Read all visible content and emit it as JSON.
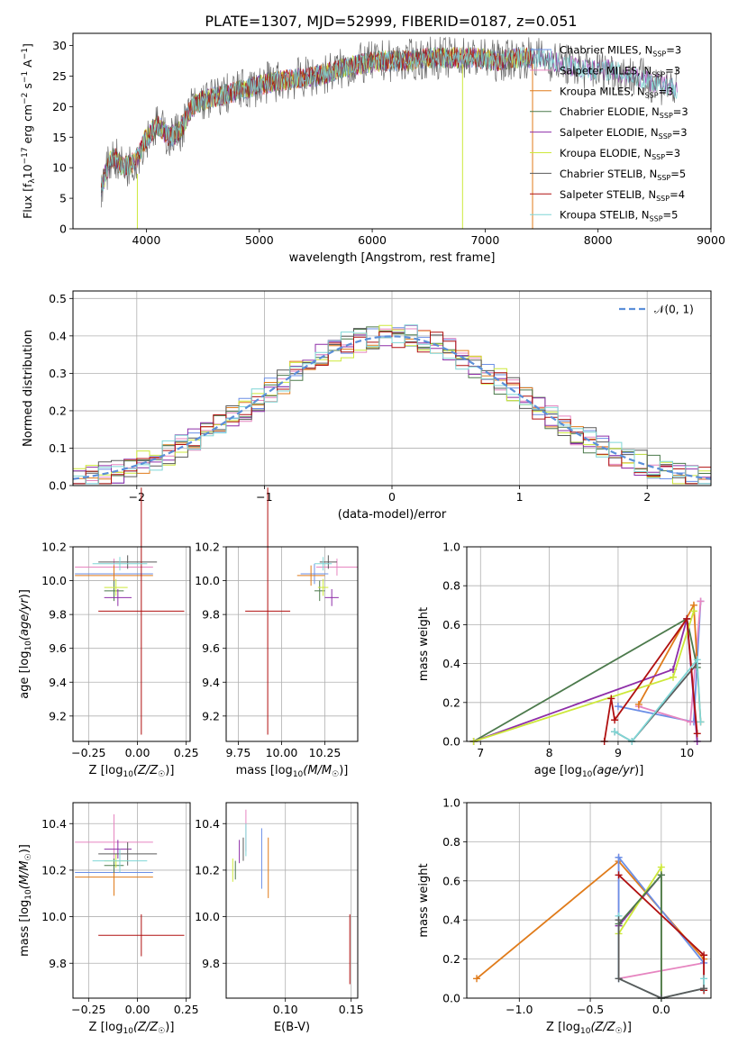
{
  "figure": {
    "title": "PLATE=1307, MJD=52999, FIBERID=0187, z=0.051"
  },
  "colors": {
    "Chabrier MILES": "#6b8fe6",
    "Salpeter MILES": "#e685c0",
    "Kroupa MILES": "#e07b1a",
    "Chabrier ELODIE": "#4c7a4c",
    "Salpeter ELODIE": "#8e2ea8",
    "Kroupa ELODIE": "#cde83a",
    "Chabrier STELIB": "#5a5a5a",
    "Salpeter STELIB": "#b01010",
    "Kroupa STELIB": "#7fd6d6"
  },
  "chart_data": [
    {
      "id": "spectrum",
      "type": "line",
      "xlabel": "wavelength [Angstrom, rest frame]",
      "ylabel": "Flux [f_λ10^-17 erg cm^-2 s^-1 A^-1]",
      "xlim": [
        3350,
        9000
      ],
      "ylim": [
        0,
        32
      ],
      "xticks": [
        "4000",
        "5000",
        "6000",
        "7000",
        "8000",
        "9000"
      ],
      "yticks": [
        "0",
        "5",
        "10",
        "15",
        "20",
        "25",
        "30"
      ],
      "grid": false,
      "legend_position": "top-right",
      "legend": [
        {
          "label": "Chabrier MILES, N",
          "sub": "SSP",
          "tail": "=3"
        },
        {
          "label": "Salpeter MILES, N",
          "sub": "SSP",
          "tail": "=3"
        },
        {
          "label": "Kroupa MILES, N",
          "sub": "SSP",
          "tail": "=3"
        },
        {
          "label": "Chabrier ELODIE, N",
          "sub": "SSP",
          "tail": "=3"
        },
        {
          "label": "Salpeter ELODIE, N",
          "sub": "SSP",
          "tail": "=3"
        },
        {
          "label": "Kroupa ELODIE, N",
          "sub": "SSP",
          "tail": "=3"
        },
        {
          "label": "Chabrier STELIB, N",
          "sub": "SSP",
          "tail": "=5"
        },
        {
          "label": "Salpeter STELIB, N",
          "sub": "SSP",
          "tail": "=4"
        },
        {
          "label": "Kroupa STELIB, N",
          "sub": "SSP",
          "tail": "=5"
        }
      ],
      "series": [
        {
          "name": "Chabrier MILES",
          "x": [
            3600,
            3700,
            3800,
            3900,
            4000,
            4100,
            4200,
            4300,
            4400,
            4500,
            4700,
            4900,
            5100,
            5300,
            5500,
            5700,
            5900,
            6100,
            6300,
            6500,
            6700,
            6900,
            7100,
            7300,
            7400
          ],
          "y": [
            7,
            12,
            10,
            11,
            15,
            17,
            15,
            16,
            20,
            21,
            22,
            23,
            24,
            24.5,
            25,
            26,
            27,
            27.5,
            27.5,
            28,
            28,
            28,
            27.5,
            28,
            28
          ]
        },
        {
          "name": "Kroupa STELIB",
          "x": [
            3600,
            3700,
            3800,
            3900,
            4000,
            4100,
            4200,
            4300,
            4400,
            4500,
            4700,
            4900,
            5100,
            5300,
            5500,
            5700,
            5900,
            6100,
            6300,
            6500,
            6700,
            6900,
            7100,
            7300,
            7500,
            7700,
            7900,
            8100,
            8300,
            8500,
            8700
          ],
          "y": [
            7,
            12,
            10,
            11,
            15,
            17,
            15,
            16,
            20,
            21,
            22,
            23,
            24,
            24.5,
            25,
            26,
            27,
            27.5,
            27.5,
            28,
            28,
            28,
            27.5,
            28,
            28,
            27,
            26,
            26,
            25,
            24,
            23
          ]
        }
      ]
    },
    {
      "id": "residuals",
      "type": "line",
      "xlabel": "(data-model)/error",
      "ylabel": "Normed distribution",
      "xlim": [
        -2.5,
        2.5
      ],
      "ylim": [
        0,
        0.52
      ],
      "xticks": [
        "−2",
        "−1",
        "0",
        "1",
        "2"
      ],
      "yticks": [
        "0.0",
        "0.1",
        "0.2",
        "0.3",
        "0.4",
        "0.5"
      ],
      "grid": true,
      "legend_position": "top-right",
      "legend": [
        {
          "label": "𝒩(0, 1)"
        }
      ],
      "series": [
        {
          "name": "Chabrier MILES",
          "x": [
            -2.5,
            -2.2,
            -2.0,
            -1.8,
            -1.6,
            -1.4,
            -1.2,
            -1.0,
            -0.8,
            -0.6,
            -0.4,
            -0.2,
            0.0,
            0.2,
            0.4,
            0.6,
            0.8,
            1.0,
            1.2,
            1.4,
            1.6,
            1.8,
            2.0,
            2.2,
            2.4
          ],
          "y": [
            0.02,
            0.03,
            0.05,
            0.08,
            0.13,
            0.17,
            0.22,
            0.27,
            0.31,
            0.37,
            0.42,
            0.38,
            0.41,
            0.39,
            0.36,
            0.33,
            0.3,
            0.25,
            0.2,
            0.15,
            0.11,
            0.08,
            0.06,
            0.04,
            0.03
          ]
        },
        {
          "name": "Salpeter STELIB",
          "x": [
            -2.5,
            -2.2,
            -2.0,
            -1.8,
            -1.6,
            -1.4,
            -1.2,
            -1.0,
            -0.8,
            -0.6,
            -0.4,
            -0.2,
            0.0,
            0.2,
            0.4,
            0.6,
            0.8,
            1.0,
            1.2,
            1.4,
            1.6,
            1.8,
            2.0,
            2.2,
            2.4
          ],
          "y": [
            0.03,
            0.02,
            0.05,
            0.09,
            0.12,
            0.17,
            0.21,
            0.26,
            0.3,
            0.35,
            0.46,
            0.36,
            0.4,
            0.4,
            0.34,
            0.34,
            0.29,
            0.24,
            0.21,
            0.17,
            0.12,
            0.09,
            0.07,
            0.05,
            0.03
          ]
        }
      ],
      "gaussian": {
        "name": "𝒩(0, 1)",
        "mu": 0,
        "sigma": 1
      }
    },
    {
      "id": "age-vs-Z",
      "type": "scatter",
      "xlabel": "Z [log10(Z/Z☉)]",
      "ylabel": "age  [log10(age/yr)]",
      "xlim": [
        -0.33,
        0.27
      ],
      "ylim": [
        9.05,
        10.2
      ],
      "xticks": [
        "−0.25",
        "0.00",
        "0.25"
      ],
      "yticks": [
        "9.2",
        "9.4",
        "9.6",
        "9.8",
        "10.0",
        "10.2"
      ],
      "grid": true,
      "points": [
        {
          "name": "Chabrier MILES",
          "x": -0.12,
          "y": 10.04,
          "xerr": 0.2,
          "yerr": 0.06
        },
        {
          "name": "Salpeter MILES",
          "x": -0.12,
          "y": 10.08,
          "xerr": 0.2,
          "yerr": 0.05
        },
        {
          "name": "Kroupa MILES",
          "x": -0.12,
          "y": 10.03,
          "xerr": 0.2,
          "yerr": 0.06
        },
        {
          "name": "Chabrier ELODIE",
          "x": -0.12,
          "y": 9.94,
          "xerr": 0.05,
          "yerr": 0.06
        },
        {
          "name": "Salpeter ELODIE",
          "x": -0.1,
          "y": 9.9,
          "xerr": 0.07,
          "yerr": 0.05
        },
        {
          "name": "Kroupa ELODIE",
          "x": -0.11,
          "y": 9.96,
          "xerr": 0.06,
          "yerr": 0.05
        },
        {
          "name": "Chabrier STELIB",
          "x": -0.05,
          "y": 10.11,
          "xerr": 0.15,
          "yerr": 0.04
        },
        {
          "name": "Salpeter STELIB",
          "x": 0.02,
          "y": 9.82,
          "xerr": 0.22,
          "yerr": 0.73
        },
        {
          "name": "Kroupa STELIB",
          "x": -0.09,
          "y": 10.1,
          "xerr": 0.14,
          "yerr": 0.04
        }
      ]
    },
    {
      "id": "age-vs-mass",
      "type": "scatter",
      "xlabel": "mass [log10(M/M☉)]",
      "ylabel": "",
      "xlim": [
        9.68,
        10.44
      ],
      "ylim": [
        9.05,
        10.2
      ],
      "xticks": [
        "9.75",
        "10.00",
        "10.25"
      ],
      "yticks": [
        "9.2",
        "9.4",
        "9.6",
        "9.8",
        "10.0",
        "10.2"
      ],
      "grid": true,
      "points": [
        {
          "name": "Chabrier MILES",
          "x": 10.19,
          "y": 10.04,
          "xerr": 0.08,
          "yerr": 0.06
        },
        {
          "name": "Salpeter MILES",
          "x": 10.32,
          "y": 10.08,
          "xerr": 0.12,
          "yerr": 0.05
        },
        {
          "name": "Kroupa MILES",
          "x": 10.17,
          "y": 10.03,
          "xerr": 0.08,
          "yerr": 0.06
        },
        {
          "name": "Chabrier ELODIE",
          "x": 10.22,
          "y": 9.94,
          "xerr": 0.03,
          "yerr": 0.06
        },
        {
          "name": "Salpeter ELODIE",
          "x": 10.29,
          "y": 9.9,
          "xerr": 0.04,
          "yerr": 0.05
        },
        {
          "name": "Kroupa ELODIE",
          "x": 10.24,
          "y": 9.96,
          "xerr": 0.03,
          "yerr": 0.05
        },
        {
          "name": "Chabrier STELIB",
          "x": 10.27,
          "y": 10.11,
          "xerr": 0.05,
          "yerr": 0.04
        },
        {
          "name": "Salpeter STELIB",
          "x": 9.92,
          "y": 9.82,
          "xerr": 0.13,
          "yerr": 0.73
        },
        {
          "name": "Kroupa STELIB",
          "x": 10.24,
          "y": 10.1,
          "xerr": 0.05,
          "yerr": 0.04
        }
      ]
    },
    {
      "id": "massweight-vs-age",
      "type": "line",
      "xlabel": "age  [log10(age/yr)]",
      "ylabel": "mass weight",
      "xlim": [
        6.8,
        10.35
      ],
      "ylim": [
        0,
        1.0
      ],
      "xticks": [
        "7",
        "8",
        "9",
        "10"
      ],
      "yticks": [
        "0.0",
        "0.2",
        "0.4",
        "0.6",
        "0.8",
        "1.0"
      ],
      "grid": true,
      "series": [
        {
          "name": "Chabrier MILES",
          "x": [
            9.0,
            10.1,
            10.2
          ],
          "y": [
            0.18,
            0.1,
            0.72
          ]
        },
        {
          "name": "Salpeter MILES",
          "x": [
            9.3,
            10.05,
            10.2
          ],
          "y": [
            0.18,
            0.1,
            0.72
          ]
        },
        {
          "name": "Kroupa MILES",
          "x": [
            9.3,
            10.1,
            10.2
          ],
          "y": [
            0.19,
            0.7,
            0.1
          ]
        },
        {
          "name": "Chabrier ELODIE",
          "x": [
            6.9,
            10.0,
            10.15
          ],
          "y": [
            0.0,
            0.63,
            0.38
          ]
        },
        {
          "name": "Salpeter ELODIE",
          "x": [
            6.9,
            9.8,
            10.0,
            10.15
          ],
          "y": [
            0.0,
            0.37,
            0.63,
            0.0
          ]
        },
        {
          "name": "Kroupa ELODIE",
          "x": [
            6.9,
            9.8,
            10.1
          ],
          "y": [
            0.0,
            0.33,
            0.67
          ]
        },
        {
          "name": "Chabrier STELIB",
          "x": [
            8.95,
            9.2,
            10.15
          ],
          "y": [
            0.05,
            0.0,
            0.4
          ]
        },
        {
          "name": "Salpeter STELIB",
          "x": [
            8.8,
            8.9,
            8.95,
            10.0,
            10.15
          ],
          "y": [
            0.0,
            0.22,
            0.11,
            0.63,
            0.04
          ]
        },
        {
          "name": "Kroupa STELIB",
          "x": [
            8.95,
            9.2,
            10.15,
            10.2
          ],
          "y": [
            0.05,
            0.0,
            0.42,
            0.1
          ]
        }
      ]
    },
    {
      "id": "mass-vs-Z",
      "type": "scatter",
      "xlabel": "Z [log10(Z/Z☉)]",
      "ylabel": "mass [log10(M/M☉)]",
      "xlim": [
        -0.33,
        0.27
      ],
      "ylim": [
        9.65,
        10.49
      ],
      "xticks": [
        "−0.25",
        "0.00",
        "0.25"
      ],
      "yticks": [
        "9.8",
        "10.0",
        "10.2",
        "10.4"
      ],
      "grid": true,
      "points": [
        {
          "name": "Chabrier MILES",
          "x": -0.12,
          "y": 10.19,
          "xerr": 0.2,
          "yerr": 0.08
        },
        {
          "name": "Salpeter MILES",
          "x": -0.12,
          "y": 10.32,
          "xerr": 0.2,
          "yerr": 0.12
        },
        {
          "name": "Kroupa MILES",
          "x": -0.12,
          "y": 10.17,
          "xerr": 0.2,
          "yerr": 0.08
        },
        {
          "name": "Chabrier ELODIE",
          "x": -0.12,
          "y": 10.22,
          "xerr": 0.05,
          "yerr": 0.03
        },
        {
          "name": "Salpeter ELODIE",
          "x": -0.1,
          "y": 10.29,
          "xerr": 0.07,
          "yerr": 0.04
        },
        {
          "name": "Kroupa ELODIE",
          "x": -0.11,
          "y": 10.24,
          "xerr": 0.06,
          "yerr": 0.03
        },
        {
          "name": "Chabrier STELIB",
          "x": -0.05,
          "y": 10.27,
          "xerr": 0.15,
          "yerr": 0.05
        },
        {
          "name": "Salpeter STELIB",
          "x": 0.02,
          "y": 9.92,
          "xerr": 0.22,
          "yerr": 0.09
        },
        {
          "name": "Kroupa STELIB",
          "x": -0.09,
          "y": 10.24,
          "xerr": 0.14,
          "yerr": 0.05
        }
      ]
    },
    {
      "id": "mass-vs-ebv",
      "type": "scatter",
      "xlabel": "E(B-V)",
      "ylabel": "",
      "xlim": [
        0.055,
        0.155
      ],
      "ylim": [
        9.65,
        10.49
      ],
      "xticks": [
        "0.10",
        "0.15"
      ],
      "yticks": [
        "9.8",
        "10.0",
        "10.2",
        "10.4"
      ],
      "grid": true,
      "points": [
        {
          "name": "Chabrier MILES",
          "x": 0.082,
          "y": 10.25,
          "xerr": 0,
          "yerr": 0.13
        },
        {
          "name": "Salpeter MILES",
          "x": 0.07,
          "y": 10.37,
          "xerr": 0,
          "yerr": 0.09
        },
        {
          "name": "Kroupa MILES",
          "x": 0.087,
          "y": 10.21,
          "xerr": 0,
          "yerr": 0.13
        },
        {
          "name": "Chabrier ELODIE",
          "x": 0.062,
          "y": 10.2,
          "xerr": 0,
          "yerr": 0.04
        },
        {
          "name": "Salpeter ELODIE",
          "x": 0.065,
          "y": 10.28,
          "xerr": 0,
          "yerr": 0.05
        },
        {
          "name": "Kroupa ELODIE",
          "x": 0.06,
          "y": 10.2,
          "xerr": 0,
          "yerr": 0.05
        },
        {
          "name": "Chabrier STELIB",
          "x": 0.068,
          "y": 10.29,
          "xerr": 0,
          "yerr": 0.05
        },
        {
          "name": "Salpeter STELIB",
          "x": 0.149,
          "y": 9.86,
          "xerr": 0,
          "yerr": 0.15
        },
        {
          "name": "Kroupa STELIB",
          "x": 0.07,
          "y": 10.33,
          "xerr": 0,
          "yerr": 0.07
        }
      ]
    },
    {
      "id": "massweight-vs-Z",
      "type": "line",
      "xlabel": "Z [log10(Z/Z☉)]",
      "ylabel": "mass weight",
      "xlim": [
        -1.37,
        0.35
      ],
      "ylim": [
        0,
        1.0
      ],
      "xticks": [
        "−1.0",
        "−0.5",
        "0.0"
      ],
      "yticks": [
        "0.0",
        "0.2",
        "0.4",
        "0.6",
        "0.8",
        "1.0"
      ],
      "grid": true,
      "series": [
        {
          "name": "Kroupa MILES",
          "x": [
            -1.3,
            -0.3,
            0.3
          ],
          "y": [
            0.1,
            0.7,
            0.2
          ]
        },
        {
          "name": "Salpeter MILES",
          "x": [
            -0.3,
            -0.3,
            0.3,
            0.3
          ],
          "y": [
            0.72,
            0.1,
            0.18,
            0.05
          ]
        },
        {
          "name": "Chabrier MILES",
          "x": [
            -0.3,
            -0.3,
            0.3
          ],
          "y": [
            0.1,
            0.72,
            0.18
          ]
        },
        {
          "name": "Salpeter ELODIE",
          "x": [
            -0.3,
            0.0,
            0.0
          ],
          "y": [
            0.37,
            0.63,
            0.0
          ]
        },
        {
          "name": "Kroupa ELODIE",
          "x": [
            -0.3,
            0.0,
            0.0
          ],
          "y": [
            0.33,
            0.67,
            0.0
          ]
        },
        {
          "name": "Chabrier ELODIE",
          "x": [
            -0.3,
            0.0,
            0.0
          ],
          "y": [
            0.38,
            0.63,
            0.0
          ]
        },
        {
          "name": "Salpeter STELIB",
          "x": [
            -0.3,
            0.3,
            0.3
          ],
          "y": [
            0.63,
            0.22,
            0.04
          ]
        },
        {
          "name": "Kroupa STELIB",
          "x": [
            -0.3,
            -0.3,
            0.0,
            0.3,
            0.3
          ],
          "y": [
            0.42,
            0.1,
            0.0,
            0.05,
            0.1
          ]
        },
        {
          "name": "Chabrier STELIB",
          "x": [
            -0.3,
            -0.3,
            0.0,
            0.3
          ],
          "y": [
            0.4,
            0.1,
            0.0,
            0.05
          ]
        }
      ]
    }
  ]
}
